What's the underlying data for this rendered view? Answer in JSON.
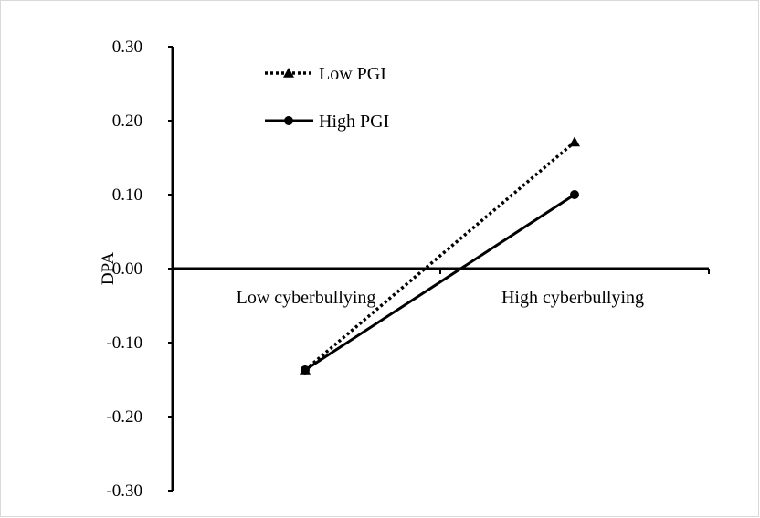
{
  "chart_data": {
    "type": "line",
    "categories": [
      "Low cyberbullying",
      "High cyberbullying"
    ],
    "series": [
      {
        "name": "Low PGI",
        "values": [
          -0.137,
          0.171
        ],
        "style": "dotted",
        "marker": "triangle"
      },
      {
        "name": "High PGI",
        "values": [
          -0.137,
          0.1
        ],
        "style": "solid",
        "marker": "circle"
      }
    ],
    "ylabel": "DPA",
    "ylim": [
      -0.3,
      0.3
    ],
    "yticks": [
      "0.30",
      "0.20",
      "0.10",
      "0.00",
      "-0.10",
      "-0.20",
      "-0.30"
    ],
    "grid": false,
    "legend_position": "top-left",
    "line_color": "#000000"
  }
}
